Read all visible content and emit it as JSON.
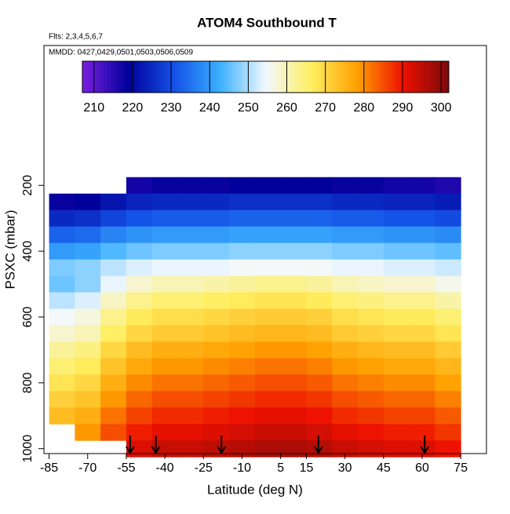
{
  "chart_data": {
    "type": "heatmap",
    "title": "ATOM4 Southbound T",
    "subtitle": "Flts: 2,3,4,5,6,7",
    "annotation": "MMDD: 0427,0429,0501,0503,0506,0509",
    "x_label": "Latitude (deg N)",
    "y_label": "PSXC (mbar)",
    "x": [
      -80,
      -70,
      -60,
      -50,
      -40,
      -30,
      -20,
      -10,
      0,
      10,
      20,
      30,
      40,
      50,
      60,
      70
    ],
    "x_width": 10,
    "y": [
      200,
      250,
      300,
      350,
      400,
      450,
      500,
      550,
      600,
      650,
      700,
      750,
      800,
      850,
      900,
      950,
      1000
    ],
    "y_height": 50,
    "values": [
      [
        null,
        null,
        null,
        217,
        218,
        218,
        218,
        219,
        219,
        219,
        219,
        218,
        218,
        217,
        217,
        216
      ],
      [
        218,
        219,
        222,
        224,
        225,
        225,
        225,
        226,
        226,
        226,
        226,
        225,
        225,
        224,
        224,
        223
      ],
      [
        225,
        226,
        229,
        231,
        232,
        232,
        232,
        233,
        233,
        233,
        233,
        232,
        232,
        231,
        231,
        230
      ],
      [
        233,
        234,
        237,
        239,
        240,
        240,
        240,
        241,
        241,
        241,
        241,
        240,
        240,
        239,
        239,
        238
      ],
      [
        240,
        241,
        244,
        246,
        247,
        247,
        247,
        248,
        248,
        248,
        248,
        247,
        247,
        246,
        246,
        245
      ],
      [
        247,
        248,
        251,
        253,
        254,
        254,
        254,
        255,
        255,
        255,
        255,
        254,
        254,
        253,
        253,
        252
      ],
      [
        246,
        248,
        254,
        258,
        260,
        260,
        261,
        262,
        263,
        263,
        262,
        260,
        259,
        258,
        258,
        256
      ],
      [
        251,
        253,
        259,
        263,
        265,
        265,
        266,
        267,
        268,
        268,
        267,
        265,
        264,
        263,
        263,
        261
      ],
      [
        255,
        257,
        263,
        267,
        269,
        269,
        270,
        271,
        272,
        272,
        271,
        269,
        268,
        267,
        267,
        265
      ],
      [
        258,
        260,
        266,
        270,
        272,
        272,
        273,
        274,
        275,
        275,
        274,
        272,
        271,
        270,
        270,
        268
      ],
      [
        262,
        264,
        270,
        274,
        276,
        276,
        277,
        278,
        279,
        279,
        278,
        276,
        275,
        274,
        274,
        272
      ],
      [
        265,
        267,
        273,
        277,
        279,
        279,
        280,
        281,
        282,
        282,
        281,
        279,
        278,
        277,
        277,
        275
      ],
      [
        268,
        270,
        276,
        280,
        282,
        282,
        283,
        284,
        285,
        285,
        284,
        282,
        281,
        280,
        280,
        278
      ],
      [
        271,
        273,
        279,
        283,
        285,
        285,
        286,
        287,
        288,
        288,
        287,
        285,
        284,
        283,
        283,
        281
      ],
      [
        274,
        276,
        282,
        286,
        288,
        288,
        289,
        290,
        291,
        291,
        290,
        288,
        287,
        286,
        286,
        284
      ],
      [
        null,
        279,
        285,
        289,
        291,
        291,
        292,
        293,
        294,
        294,
        293,
        291,
        290,
        289,
        289,
        287
      ],
      [
        null,
        null,
        null,
        292,
        294,
        294,
        295,
        296,
        297,
        297,
        296,
        294,
        293,
        292,
        292,
        290
      ]
    ],
    "arrows": [
      -53.5,
      -43.5,
      -18,
      19.7,
      61
    ],
    "xlim": [
      -87,
      85
    ],
    "xticks": [
      -85,
      -70,
      -55,
      -40,
      -25,
      -10,
      5,
      15,
      30,
      45,
      60,
      75
    ],
    "ylim": [
      1015,
      -225
    ],
    "yticks": [
      200,
      400,
      600,
      800,
      1000
    ],
    "zlim": [
      207,
      302
    ],
    "zticks": [
      210,
      220,
      230,
      240,
      250,
      260,
      270,
      280,
      290,
      300
    ],
    "colors": [
      "#7a1fe0",
      "#00009a",
      "#1450e6",
      "#3ab0ff",
      "#f2f8ff",
      "#ffef60",
      "#ffa000",
      "#ee1000",
      "#7a0a0a"
    ]
  }
}
